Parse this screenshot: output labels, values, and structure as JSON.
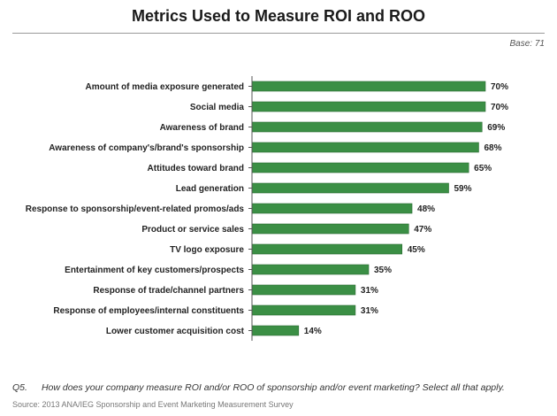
{
  "header": {
    "title": "Metrics Used to Measure ROI and ROO",
    "base": "Base: 71"
  },
  "footer": {
    "question_number": "Q5.",
    "question_text": "How does your company measure ROI and/or ROO of sponsorship and/or event marketing? Select all that apply.",
    "source": "Source: 2013 ANA/IEG Sponsorship and Event Marketing Measurement Survey"
  },
  "colors": {
    "bar_fill": "#3b8f45",
    "bar_stroke": "#2a6b32",
    "axis": "#555555"
  },
  "chart_data": {
    "type": "bar",
    "orientation": "horizontal",
    "categories": [
      "Amount of media exposure generated",
      "Social media",
      "Awareness of brand",
      "Awareness of company's/brand's sponsorship",
      "Attitudes toward brand",
      "Lead generation",
      "Response to sponsorship/event-related promos/ads",
      "Product or service sales",
      "TV logo exposure",
      "Entertainment of key customers/prospects",
      "Response of trade/channel partners",
      "Response of employees/internal constituents",
      "Lower customer acquisition cost"
    ],
    "values": [
      70,
      70,
      69,
      68,
      65,
      59,
      48,
      47,
      45,
      35,
      31,
      31,
      14
    ],
    "value_labels": [
      "70%",
      "70%",
      "69%",
      "68%",
      "65%",
      "59%",
      "48%",
      "47%",
      "45%",
      "35%",
      "31%",
      "31%",
      "14%"
    ],
    "unit": "%",
    "xlim": [
      0,
      70
    ],
    "grid": false,
    "legend": "none"
  }
}
